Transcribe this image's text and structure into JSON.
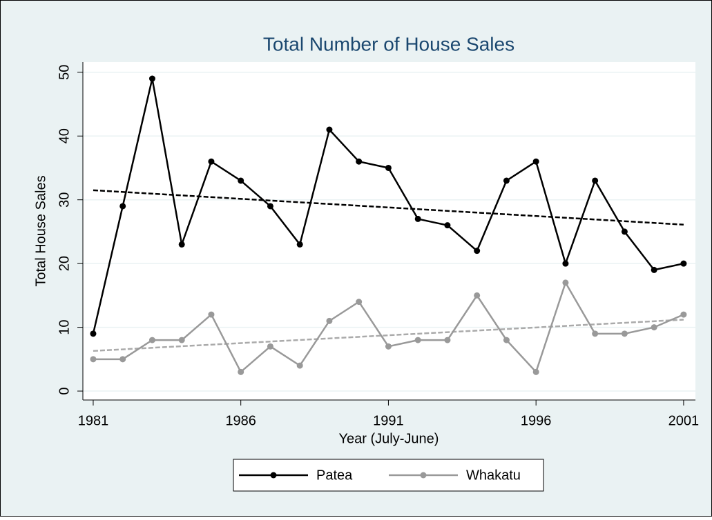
{
  "chart_data": {
    "type": "line",
    "title": "Total Number of House Sales",
    "x_label": "Year (July-June)",
    "y_label": "Total House Sales",
    "x": [
      1981,
      1982,
      1983,
      1984,
      1985,
      1986,
      1987,
      1988,
      1989,
      1990,
      1991,
      1992,
      1993,
      1994,
      1995,
      1996,
      1997,
      1998,
      1999,
      2000,
      2001
    ],
    "series": [
      {
        "name": "Patea",
        "color": "#000000",
        "values": [
          9,
          29,
          49,
          23,
          36,
          33,
          29,
          23,
          41,
          36,
          35,
          27,
          26,
          22,
          33,
          36,
          20,
          33,
          25,
          19,
          20
        ]
      },
      {
        "name": "Whakatu",
        "color": "#999999",
        "values": [
          5,
          5,
          8,
          8,
          12,
          3,
          7,
          4,
          11,
          14,
          7,
          8,
          8,
          15,
          8,
          3,
          17,
          9,
          9,
          10,
          12
        ]
      }
    ],
    "trend_lines": [
      {
        "color": "#000000",
        "x": [
          1981,
          2001
        ],
        "values": [
          31.5,
          26.1
        ]
      },
      {
        "color": "#aaaaaa",
        "x": [
          1981,
          2001
        ],
        "values": [
          6.3,
          11.2
        ]
      }
    ],
    "xlim": [
      1980.65,
      2001.4
    ],
    "ylim": [
      -1.4,
      51.6
    ],
    "xticks": [
      1981,
      1986,
      1991,
      1996,
      2001
    ],
    "yticks": [
      0,
      10,
      20,
      30,
      40,
      50
    ],
    "grid": true,
    "legend": "bottom"
  }
}
